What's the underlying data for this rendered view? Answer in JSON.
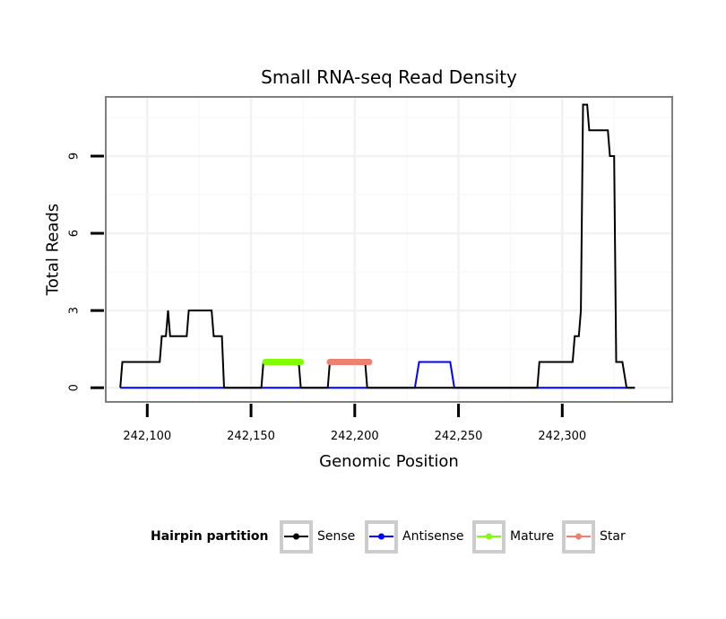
{
  "chart_data": {
    "type": "line",
    "title": "Small RNA-seq Read Density",
    "xlabel": "Genomic Position",
    "ylabel": "Total Reads",
    "xlim": [
      242080,
      242353
    ],
    "ylim": [
      -0.55,
      11.3
    ],
    "x_ticks": [
      242100,
      242150,
      242200,
      242250,
      242300
    ],
    "x_tick_labels": [
      "242,100",
      "242,150",
      "242,200",
      "242,250",
      "242,300"
    ],
    "y_ticks": [
      0,
      3,
      6,
      9
    ],
    "y_tick_labels": [
      "0",
      "3",
      "6",
      "9"
    ],
    "grid": true,
    "legend_position": "bottom",
    "legend_title": "Hairpin partition",
    "series": [
      {
        "name": "Sense",
        "color": "#000000",
        "points": [
          [
            242087,
            0
          ],
          [
            242088,
            1
          ],
          [
            242106,
            1
          ],
          [
            242107,
            2
          ],
          [
            242109,
            2
          ],
          [
            242110,
            3
          ],
          [
            242111,
            2
          ],
          [
            242119,
            2
          ],
          [
            242120,
            3
          ],
          [
            242131,
            3
          ],
          [
            242132,
            2
          ],
          [
            242136,
            2
          ],
          [
            242137,
            0
          ],
          [
            242155,
            0
          ],
          [
            242156,
            1
          ],
          [
            242173,
            1
          ],
          [
            242174,
            0
          ],
          [
            242187,
            0
          ],
          [
            242188,
            1
          ],
          [
            242205,
            1
          ],
          [
            242206,
            0
          ],
          [
            242288,
            0
          ],
          [
            242289,
            1
          ],
          [
            242305,
            1
          ],
          [
            242306,
            2
          ],
          [
            242308,
            2
          ],
          [
            242309,
            3
          ],
          [
            242310,
            11
          ],
          [
            242312,
            11
          ],
          [
            242313,
            10
          ],
          [
            242322,
            10
          ],
          [
            242323,
            9
          ],
          [
            242325,
            9
          ],
          [
            242326,
            1
          ],
          [
            242329,
            1
          ],
          [
            242331,
            0
          ],
          [
            242335,
            0
          ]
        ]
      },
      {
        "name": "Antisense",
        "color": "#0000ff",
        "points": [
          [
            242087,
            0
          ],
          [
            242229,
            0
          ],
          [
            242231,
            1
          ],
          [
            242246,
            1
          ],
          [
            242248,
            0
          ],
          [
            242335,
            0
          ]
        ]
      },
      {
        "name": "Mature",
        "color": "#7fff00",
        "points": [
          [
            242157,
            1
          ],
          [
            242174,
            1
          ]
        ]
      },
      {
        "name": "Star",
        "color": "#f08070",
        "points": [
          [
            242188,
            1
          ],
          [
            242207,
            1
          ]
        ]
      }
    ]
  }
}
